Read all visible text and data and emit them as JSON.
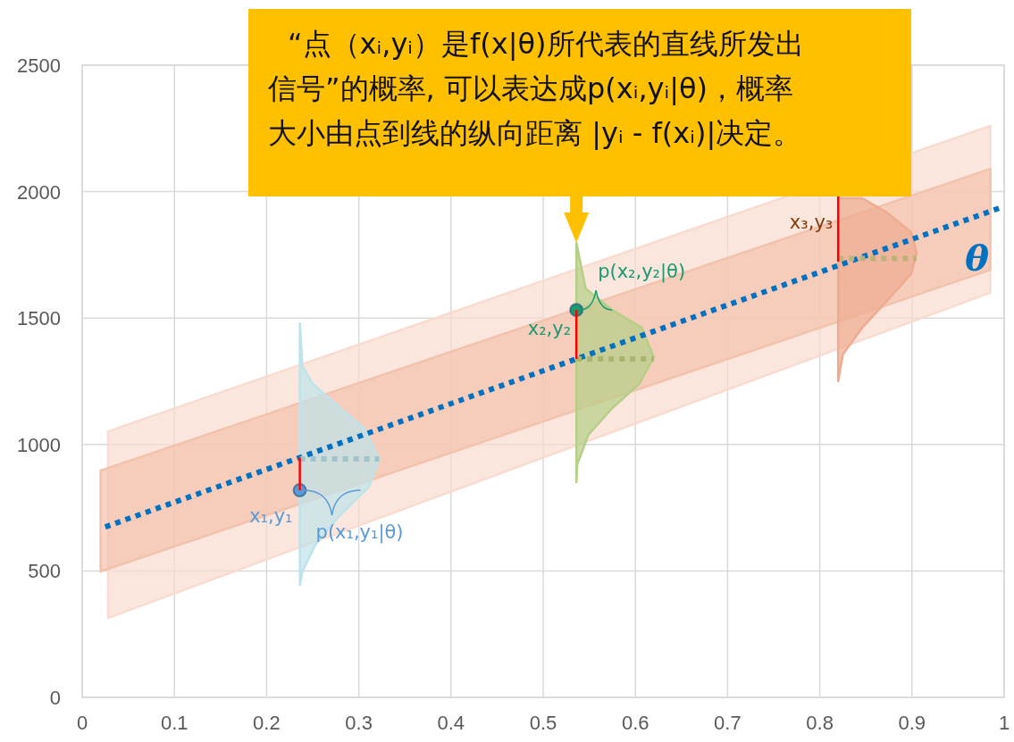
{
  "chart_data": {
    "type": "line",
    "xlim": [
      0,
      1
    ],
    "ylim": [
      0,
      2500
    ],
    "xticks": [
      0,
      0.1,
      0.2,
      0.3,
      0.4,
      0.5,
      0.6,
      0.7,
      0.8,
      0.9,
      1
    ],
    "yticks": [
      0,
      500,
      1000,
      1500,
      2000,
      2500
    ],
    "grid": true,
    "legend": false,
    "series": [
      {
        "type": "area",
        "color": "#f9dbcf",
        "x": [
          0.028,
          0.985,
          0.985,
          0.028
        ],
        "values": [
          314,
          1600,
          2260,
          1052
        ]
      },
      {
        "type": "area",
        "color": "#f3c2ad",
        "x": [
          0.02,
          0.985,
          0.985,
          0.02
        ],
        "values": [
          498,
          1690,
          2090,
          897
        ]
      },
      {
        "type": "area",
        "color": "#bfe3ea",
        "x": [
          0.236,
          0.239,
          0.25,
          0.272,
          0.306,
          0.322,
          0.311,
          0.277,
          0.253,
          0.239,
          0.236
        ],
        "values": [
          1480,
          1310,
          1240,
          1169,
          1063,
          943,
          833,
          710,
          604,
          498,
          445
        ]
      },
      {
        "type": "area",
        "color": "#b5cf86",
        "x": [
          0.536,
          0.546,
          0.575,
          0.607,
          0.62,
          0.604,
          0.575,
          0.549,
          0.537,
          0.536
        ],
        "values": [
          1797,
          1617,
          1532,
          1462,
          1345,
          1239,
          1144,
          1038,
          922,
          851
        ]
      },
      {
        "type": "area",
        "color": "#eeab90",
        "x": [
          0.82,
          0.846,
          0.873,
          0.899,
          0.905,
          0.899,
          0.873,
          0.846,
          0.825,
          0.82
        ],
        "values": [
          1974,
          1974,
          1917,
          1840,
          1758,
          1674,
          1568,
          1462,
          1356,
          1250
        ]
      },
      {
        "color": "#0070c0",
        "name": "θ",
        "line_style": "dotted",
        "x": [
          0.025,
          0.995
        ],
        "values": [
          674,
          1935
        ]
      },
      {
        "color": "#9fc3c8",
        "line_style": "dotted",
        "x": [
          0.236,
          0.322
        ],
        "values": [
          943,
          943
        ]
      },
      {
        "color": "#a9b46e",
        "line_style": "dotted",
        "x": [
          0.536,
          0.62
        ],
        "values": [
          1338,
          1338
        ]
      },
      {
        "color": "#bdb27a",
        "line_style": "dotted",
        "x": [
          0.82,
          0.905
        ],
        "values": [
          1735,
          1735
        ]
      },
      {
        "type": "scatter",
        "marker": "circle",
        "x": [
          0.236,
          0.536
        ],
        "values": [
          819,
          1532
        ],
        "colors": [
          "#5b9bd5",
          "#1a9a70"
        ]
      },
      {
        "color": "#ff0000",
        "line_style": "solid",
        "x": [
          0.236,
          0.236
        ],
        "values": [
          819,
          948
        ]
      },
      {
        "color": "#ff0000",
        "line_style": "solid",
        "x": [
          0.536,
          0.536
        ],
        "values": [
          1532,
          1338
        ]
      },
      {
        "color": "#ff0000",
        "line_style": "solid",
        "x": [
          0.82,
          0.82
        ],
        "values": [
          1723,
          1981
        ]
      }
    ],
    "annotations": [
      "“点（xᵢ,yᵢ）是f(x|θ)所代表的直线所发出信号”的概率, 可以表达成p(xᵢ,yᵢ|θ)，概率大小由点到线的纵向距离 |yᵢ - f(xᵢ)|决定。",
      {
        "text": "x₁,y₁",
        "x": 0.236,
        "y": 819
      },
      {
        "text": "p(x₁,y₁|θ)",
        "x": 0.236,
        "y": 819
      },
      {
        "text": "x₂,y₂",
        "x": 0.536,
        "y": 1532
      },
      {
        "text": "p(x₂,y₂|θ)",
        "x": 0.536,
        "y": 1532
      },
      {
        "text": "x₃,y₃",
        "x": 0.82,
        "y": 1875
      }
    ]
  }
}
